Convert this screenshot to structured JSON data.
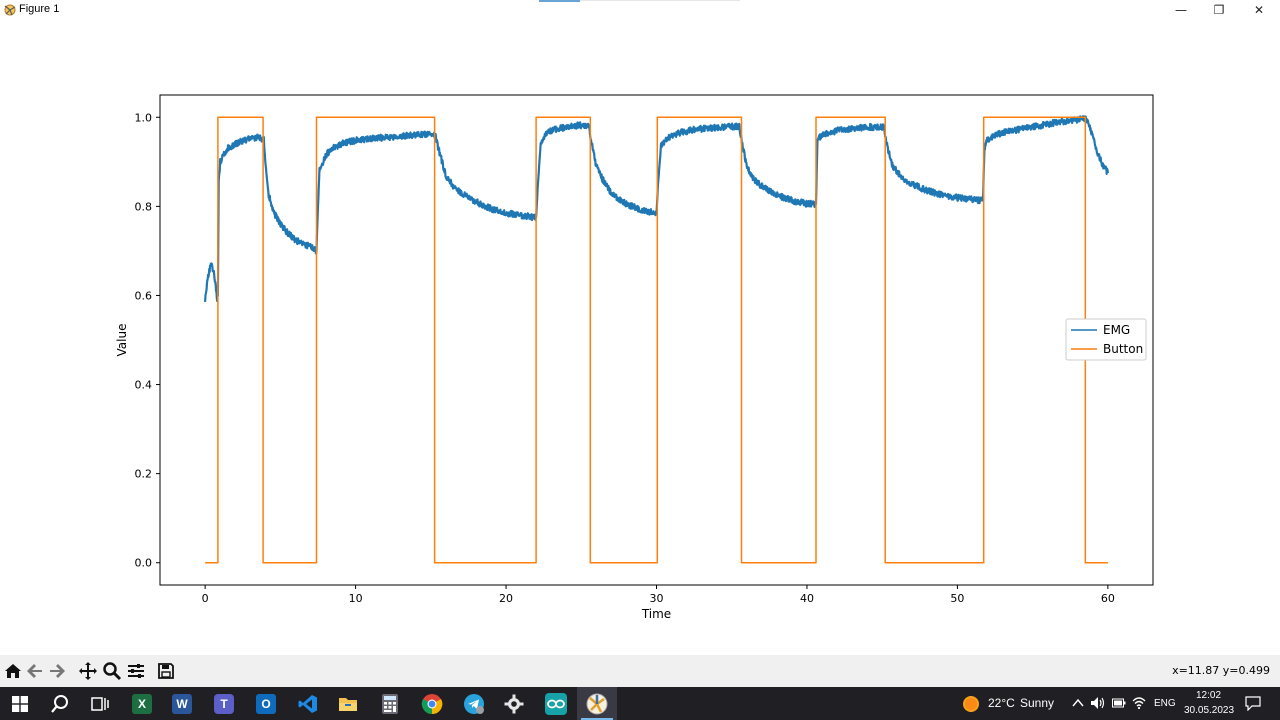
{
  "window": {
    "title": "Figure 1"
  },
  "window_controls": {
    "minimize": "—",
    "maximize": "❐",
    "close": "✕"
  },
  "toolbar": {
    "buttons": [
      "home-icon",
      "back-arrow-icon",
      "forward-arrow-icon",
      "pan-icon",
      "zoom-icon",
      "configure-subplots-icon",
      "save-icon"
    ],
    "coords": "x=11.87 y=0.499"
  },
  "chart_data": {
    "type": "line",
    "title": "",
    "xlabel": "Time",
    "ylabel": "Value",
    "xlim": [
      -3,
      63
    ],
    "ylim": [
      -0.05,
      1.05
    ],
    "xticks": [
      0,
      10,
      20,
      30,
      40,
      50,
      60
    ],
    "xtick_labels": [
      "0",
      "10",
      "20",
      "30",
      "40",
      "50",
      "60"
    ],
    "yticks": [
      0.0,
      0.2,
      0.4,
      0.6,
      0.8,
      1.0
    ],
    "ytick_labels": [
      "0.0",
      "0.2",
      "0.4",
      "0.6",
      "0.8",
      "1.0"
    ],
    "legend_position": "center-right",
    "grid": false,
    "series": [
      {
        "name": "EMG",
        "color": "#1f77b4",
        "x": [
          0,
          0.2,
          0.4,
          0.55,
          0.7,
          0.8,
          0.85,
          0.9,
          1.0,
          1.2,
          1.5,
          2.0,
          2.5,
          3.0,
          3.5,
          3.9,
          4.0,
          4.2,
          4.5,
          5.0,
          5.5,
          6.0,
          6.5,
          7.0,
          7.4,
          7.5,
          7.6,
          8.0,
          8.5,
          9.0,
          10,
          11,
          12,
          13,
          14,
          15,
          15.3,
          15.5,
          16,
          16.5,
          17,
          18,
          19,
          20,
          21,
          22,
          22.1,
          22.3,
          22.7,
          23.2,
          24,
          24.8,
          25.5,
          25.7,
          26,
          26.5,
          27,
          27.5,
          28,
          29,
          30,
          30.1,
          30.3,
          30.8,
          31.5,
          32.5,
          33.5,
          34.5,
          35.5,
          35.7,
          36,
          36.5,
          37,
          37.5,
          38,
          39,
          40,
          40.6,
          40.7,
          41,
          41.5,
          42,
          43,
          44,
          45.1,
          45.3,
          45.7,
          46.3,
          47,
          47.8,
          48.5,
          49.5,
          50.5,
          51.7,
          51.8,
          52,
          52.5,
          53,
          54,
          55,
          56,
          57,
          58,
          58.5,
          58.7,
          59,
          59.3,
          59.7,
          60
        ],
        "y": [
          0.59,
          0.645,
          0.67,
          0.655,
          0.62,
          0.59,
          0.6,
          0.85,
          0.9,
          0.915,
          0.93,
          0.94,
          0.948,
          0.952,
          0.955,
          0.95,
          0.9,
          0.83,
          0.79,
          0.76,
          0.74,
          0.725,
          0.715,
          0.71,
          0.7,
          0.8,
          0.88,
          0.915,
          0.93,
          0.94,
          0.948,
          0.952,
          0.955,
          0.958,
          0.96,
          0.962,
          0.96,
          0.93,
          0.87,
          0.845,
          0.83,
          0.81,
          0.795,
          0.785,
          0.78,
          0.775,
          0.84,
          0.94,
          0.965,
          0.972,
          0.978,
          0.982,
          0.98,
          0.94,
          0.89,
          0.855,
          0.83,
          0.815,
          0.805,
          0.792,
          0.785,
          0.85,
          0.935,
          0.955,
          0.965,
          0.972,
          0.976,
          0.978,
          0.98,
          0.94,
          0.89,
          0.86,
          0.845,
          0.835,
          0.825,
          0.813,
          0.806,
          0.805,
          0.95,
          0.96,
          0.965,
          0.97,
          0.975,
          0.978,
          0.978,
          0.94,
          0.89,
          0.865,
          0.85,
          0.838,
          0.83,
          0.822,
          0.817,
          0.813,
          0.93,
          0.95,
          0.96,
          0.965,
          0.972,
          0.978,
          0.985,
          0.99,
          0.995,
          0.997,
          0.99,
          0.955,
          0.92,
          0.89,
          0.875
        ]
      },
      {
        "name": "Button",
        "color": "#ff7f0e",
        "x": [
          0,
          0.85,
          0.85,
          3.85,
          3.85,
          7.4,
          7.4,
          15.25,
          15.25,
          22.0,
          22.0,
          25.6,
          25.6,
          30.05,
          30.05,
          35.65,
          35.65,
          40.6,
          40.6,
          45.2,
          45.2,
          51.75,
          51.75,
          58.5,
          58.5,
          60.0
        ],
        "y": [
          0,
          0,
          1,
          1,
          0,
          0,
          1,
          1,
          0,
          0,
          1,
          1,
          0,
          0,
          1,
          1,
          0,
          0,
          1,
          1,
          0,
          0,
          1,
          1,
          0,
          0
        ]
      }
    ]
  },
  "taskbar": {
    "apps": [
      {
        "name": "start-windows-icon"
      },
      {
        "name": "search-icon"
      },
      {
        "name": "task-view-icon"
      },
      {
        "name": "excel-icon",
        "label": "X",
        "color": "#1d6f42"
      },
      {
        "name": "word-icon",
        "label": "W",
        "color": "#2b579a"
      },
      {
        "name": "teams-icon",
        "label": "T",
        "color": "#5b5fc7"
      },
      {
        "name": "outlook-icon",
        "label": "O",
        "color": "#0f6cbd"
      },
      {
        "name": "vscode-icon",
        "label": "",
        "color": "#1e88e5"
      },
      {
        "name": "file-explorer-icon",
        "label": "",
        "color": "#f2c14e"
      },
      {
        "name": "calculator-icon",
        "label": "",
        "color": "#6b6b75"
      },
      {
        "name": "chrome-icon",
        "label": "",
        "color": "#db4437"
      },
      {
        "name": "telegram-icon",
        "label": "",
        "color": "#2aa3dd"
      },
      {
        "name": "settings-icon",
        "label": "",
        "color": "#cfcfcf"
      },
      {
        "name": "arduino-icon",
        "label": "",
        "color": "#17a2a8"
      },
      {
        "name": "python-figure-icon",
        "label": "",
        "color": "#e0a030"
      }
    ],
    "weather": {
      "temp": "22°C",
      "condition": "Sunny"
    },
    "language": "ENG",
    "time": "12:02",
    "date": "30.05.2023"
  }
}
